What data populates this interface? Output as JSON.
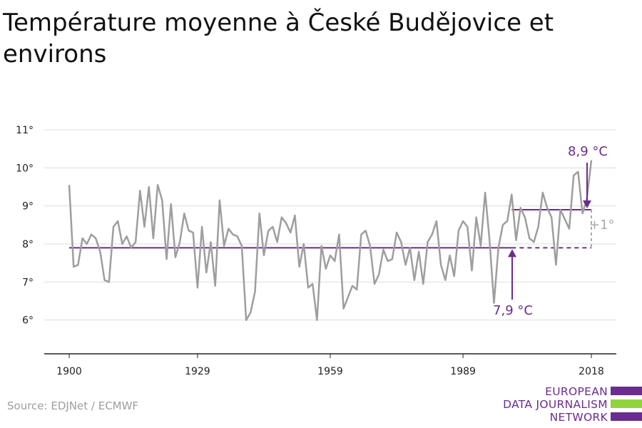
{
  "title": "Température moyenne à České Budějovice et environs",
  "source": "Source: EDJNet / ECMWF",
  "logo": {
    "line1": "EUROPEAN",
    "line2": "DATA JOURNALISM",
    "line3": "NETWORK",
    "colors": [
      "#6a2c8e",
      "#8fd43a",
      "#6a2c8e"
    ]
  },
  "colors": {
    "line": "#9e9e9e",
    "accent": "#6a2c8e",
    "grid": "#dddddd",
    "axis": "#222222"
  },
  "chart_data": {
    "type": "line",
    "x_ticks": [
      1900,
      1929,
      1959,
      1989,
      2018
    ],
    "y_ticks": [
      6,
      7,
      8,
      9,
      10,
      11
    ],
    "y_tick_labels": [
      "6°",
      "7°",
      "8°",
      "9°",
      "10°",
      "11°"
    ],
    "xlim": [
      1900,
      2018
    ],
    "ylim": [
      5,
      11
    ],
    "grid": true,
    "series": [
      {
        "x": [
          1900,
          1901,
          1902,
          1903,
          1904,
          1905,
          1906,
          1907,
          1908,
          1909,
          1910,
          1911,
          1912,
          1913,
          1914,
          1915,
          1916,
          1917,
          1918,
          1919,
          1920,
          1921,
          1922,
          1923,
          1924,
          1925,
          1926,
          1927,
          1928,
          1929,
          1930,
          1931,
          1932,
          1933,
          1934,
          1935,
          1936,
          1937,
          1938,
          1939,
          1940,
          1941,
          1942,
          1943,
          1944,
          1945,
          1946,
          1947,
          1948,
          1949,
          1950,
          1951,
          1952,
          1953,
          1954,
          1955,
          1956,
          1957,
          1958,
          1959,
          1960,
          1961,
          1962,
          1963,
          1964,
          1965,
          1966,
          1967,
          1968,
          1969,
          1970,
          1971,
          1972,
          1973,
          1974,
          1975,
          1976,
          1977,
          1978,
          1979,
          1980,
          1981,
          1982,
          1983,
          1984,
          1985,
          1986,
          1987,
          1988,
          1989,
          1990,
          1991,
          1992,
          1993,
          1994,
          1995,
          1996,
          1997,
          1998,
          1999,
          2000,
          2001,
          2002,
          2003,
          2004,
          2005,
          2006,
          2007,
          2008,
          2009,
          2010,
          2011,
          2012,
          2013,
          2014,
          2015,
          2016,
          2017,
          2018
        ],
        "values": [
          9.55,
          7.4,
          7.45,
          8.15,
          8.0,
          8.25,
          8.15,
          7.8,
          7.05,
          7.0,
          8.45,
          8.6,
          8.0,
          8.2,
          7.9,
          8.05,
          9.4,
          8.45,
          9.5,
          8.15,
          9.55,
          9.15,
          7.6,
          9.05,
          7.65,
          8.05,
          8.8,
          8.35,
          8.3,
          6.85,
          8.45,
          7.25,
          8.05,
          6.9,
          9.15,
          7.95,
          8.4,
          8.25,
          8.2,
          7.95,
          6.0,
          6.2,
          6.75,
          8.8,
          7.7,
          8.35,
          8.45,
          8.05,
          8.7,
          8.55,
          8.3,
          8.75,
          7.4,
          8.0,
          6.85,
          6.95,
          6.0,
          7.95,
          7.35,
          7.7,
          7.55,
          8.25,
          6.3,
          6.6,
          6.9,
          6.8,
          8.25,
          8.35,
          7.95,
          6.95,
          7.2,
          7.85,
          7.55,
          7.6,
          8.3,
          8.05,
          7.45,
          7.9,
          7.05,
          7.8,
          6.95,
          8.05,
          8.25,
          8.6,
          7.45,
          7.05,
          7.7,
          7.15,
          8.35,
          8.6,
          8.45,
          7.3,
          8.7,
          7.95,
          9.35,
          8.1,
          6.45,
          7.9,
          8.5,
          8.6,
          9.3,
          8.1,
          8.95,
          8.7,
          8.15,
          8.05,
          8.45,
          9.35,
          8.95,
          8.7,
          7.45,
          8.9,
          8.65,
          8.4,
          9.8,
          9.9,
          8.8,
          9.2,
          10.2
        ]
      }
    ],
    "baseline": {
      "value": 7.9,
      "label": "7,9 °C",
      "solid_from": 1900,
      "solid_to": 2000,
      "dashed_to": 2018
    },
    "recent": {
      "value": 8.9,
      "label": "8,9 °C",
      "from": 2000,
      "to": 2018
    },
    "difference_label": "+1°"
  }
}
